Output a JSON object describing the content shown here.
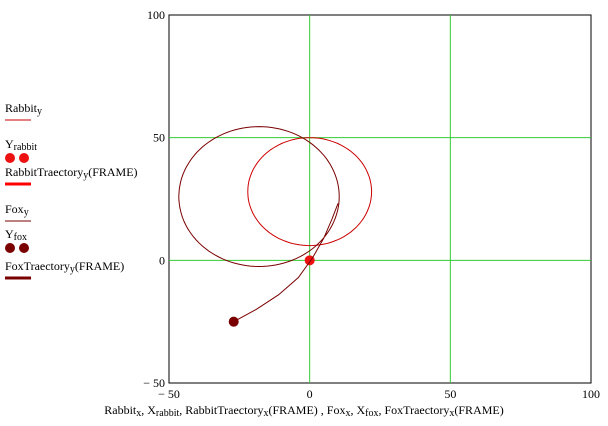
{
  "chart_data": {
    "type": "line",
    "xlim": [
      -50,
      100
    ],
    "ylim": [
      -50,
      100
    ],
    "x_ticks": [
      "-50",
      "0",
      "50",
      "100"
    ],
    "y_ticks": [
      "-50",
      "0",
      "50",
      "100"
    ],
    "grid": true,
    "grid_color": "#33cc33",
    "xlabel": {
      "parts": [
        {
          "t": "Rabbit"
        },
        {
          "s": "x"
        },
        {
          "t": ", X"
        },
        {
          "s": "rabbit"
        },
        {
          "t": ", RabbitTraectory"
        },
        {
          "s": "x"
        },
        {
          "t": "(FRAME) , Fox"
        },
        {
          "s": "x"
        },
        {
          "t": ", X"
        },
        {
          "s": "fox"
        },
        {
          "t": ", FoxTraectory"
        },
        {
          "s": "x"
        },
        {
          "t": "(FRAME)"
        }
      ]
    },
    "series": [
      {
        "legend": [
          {
            "t": "Rabbit"
          },
          {
            "s": "y"
          }
        ],
        "color": "#cc0000",
        "kind": "line",
        "center": [
          0,
          28
        ],
        "radius": 22,
        "start_angle_deg": -90,
        "direction": -1
      },
      {
        "legend": [
          {
            "t": "Y"
          },
          {
            "s": "rabbit"
          }
        ],
        "color": "#ee1111",
        "kind": "points",
        "points": [
          [
            0,
            0
          ]
        ]
      },
      {
        "legend": [
          {
            "t": "RabbitTraectory"
          },
          {
            "s": "y"
          },
          {
            "t": "(FRAME)"
          }
        ],
        "color": "#ff0000",
        "kind": "thick"
      },
      {
        "legend": [
          {
            "t": "Fox"
          },
          {
            "s": "y"
          }
        ],
        "color": "#7a0000",
        "kind": "line",
        "start": [
          -27,
          -25
        ],
        "lead": [
          [
            -19,
            -20
          ],
          [
            -11,
            -14
          ],
          [
            -4,
            -7
          ],
          [
            1,
            1
          ],
          [
            5,
            9
          ],
          [
            8,
            17
          ],
          [
            10,
            23
          ]
        ],
        "loop_center": [
          -18,
          26
        ],
        "loop_radius": 28.5
      },
      {
        "legend": [
          {
            "t": "Y"
          },
          {
            "s": "fox"
          }
        ],
        "color": "#7a0000",
        "kind": "points",
        "points": [
          [
            -27,
            -25
          ]
        ]
      },
      {
        "legend": [
          {
            "t": "FoxTraectory"
          },
          {
            "s": "y"
          },
          {
            "t": "(FRAME)"
          }
        ],
        "color": "#7a0000",
        "kind": "thick"
      }
    ]
  }
}
